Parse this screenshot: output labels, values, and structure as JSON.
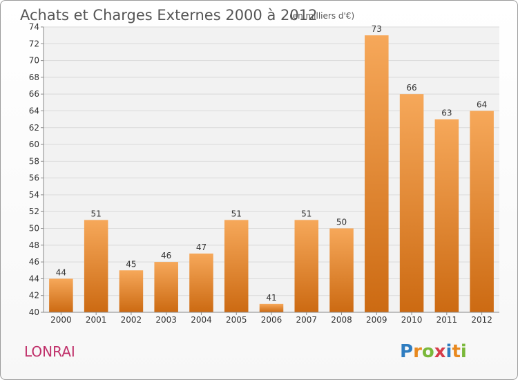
{
  "title": "Achats et Charges Externes 2000 à 2012",
  "subtitle": "(en milliers d'€)",
  "location": "LONRAI",
  "logo": {
    "text": "Proxiti",
    "letters": [
      {
        "char": "P",
        "color": "#2f7dc0"
      },
      {
        "char": "r",
        "color": "#e8891f"
      },
      {
        "char": "o",
        "color": "#7ab83a"
      },
      {
        "char": "x",
        "color": "#d63c4a"
      },
      {
        "char": "i",
        "color": "#2f7dc0"
      },
      {
        "char": "t",
        "color": "#e8891f"
      },
      {
        "char": "i",
        "color": "#7ab83a"
      }
    ]
  },
  "colors": {
    "bar_light": "#f6a85a",
    "bar_dark": "#cc6a12",
    "grid": "#d9d9d9",
    "plot_bg": "#f2f2f2",
    "axis": "#888888"
  },
  "chart_data": {
    "type": "bar",
    "title": "Achats et Charges Externes 2000 à 2012",
    "subtitle": "(en milliers d'€)",
    "xlabel": "",
    "ylabel": "",
    "categories": [
      "2000",
      "2001",
      "2002",
      "2003",
      "2004",
      "2005",
      "2006",
      "2007",
      "2008",
      "2009",
      "2010",
      "2011",
      "2012"
    ],
    "values": [
      44,
      51,
      45,
      46,
      47,
      51,
      41,
      51,
      50,
      73,
      66,
      63,
      64
    ],
    "ylim": [
      40,
      74
    ],
    "yticks": [
      40,
      42,
      44,
      46,
      48,
      50,
      52,
      54,
      56,
      58,
      60,
      62,
      64,
      66,
      68,
      70,
      72,
      74
    ],
    "grid": true,
    "data_labels": true
  }
}
